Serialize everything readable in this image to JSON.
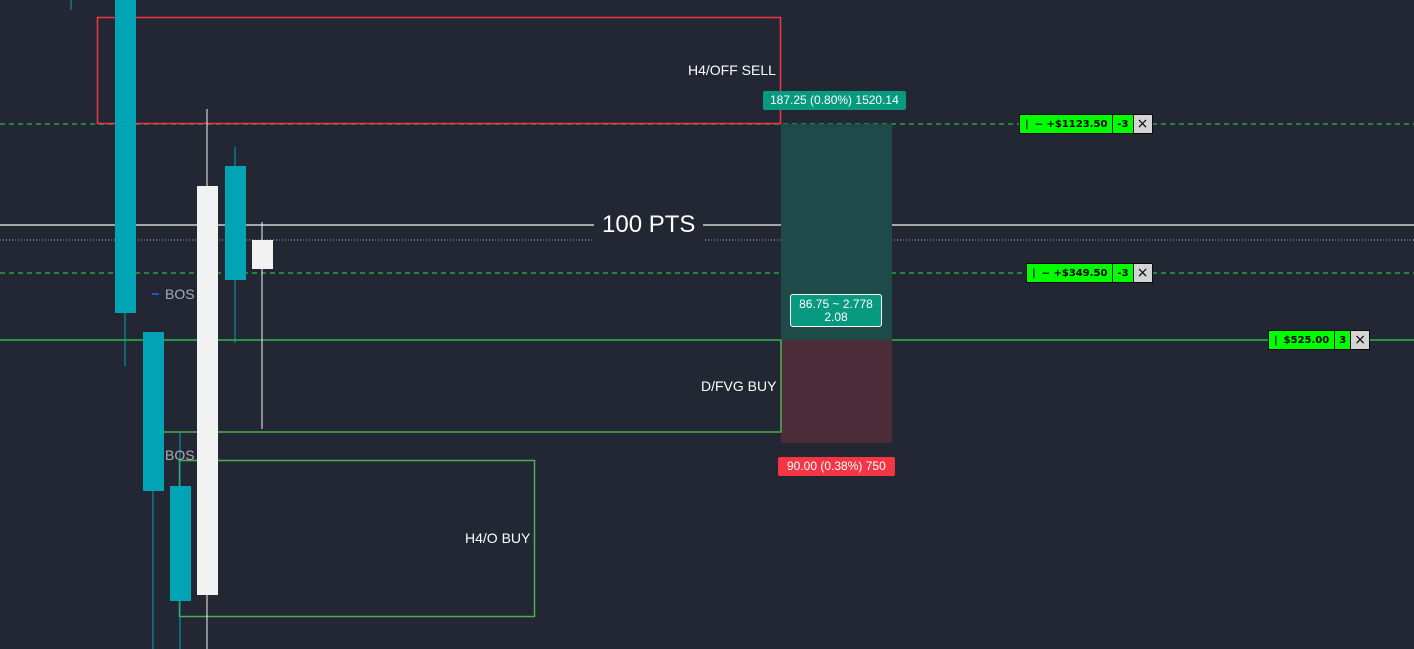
{
  "zones": {
    "h4_off_sell": "H4/OFF SELL",
    "d_fvg_buy": "D/FVG BUY",
    "h4_o_buy": "H4/O BUY"
  },
  "structure": {
    "bos_upper": "BOS",
    "bos_lower": "BOS"
  },
  "measure": {
    "label": "100 PTS"
  },
  "position": {
    "target_badge": "187.25 (0.80%) 1520.14",
    "stop_badge": "90.00 (0.38%) 750",
    "ratio_line1": "86.75 ~ 2.778",
    "ratio_line2": "2.08"
  },
  "orders": [
    {
      "glyph": "|",
      "label": "~ +$1123.50",
      "qty": "-3"
    },
    {
      "glyph": "|",
      "label": "~ +$349.50",
      "qty": "-3"
    },
    {
      "glyph": "|",
      "label": "$525.00",
      "qty": "3"
    }
  ],
  "icons": {
    "close": "×"
  },
  "colors": {
    "background": "#222733",
    "bull_candle": "#00a4b4",
    "bear_candle": "#f2f2f2",
    "sell_zone": "#f23645",
    "buy_zone": "#4caf50",
    "take_profit": "#089981",
    "stop_loss": "#f23645",
    "order_chip": "#00ff00",
    "dashed_line": "#22a83a"
  }
}
